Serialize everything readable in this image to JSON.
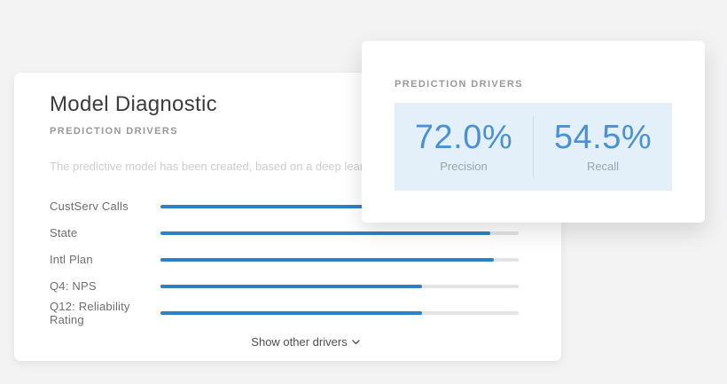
{
  "main_card": {
    "title": "Model Diagnostic",
    "section_label": "PREDICTION DRIVERS",
    "description": "The predictive model has been created, based on a deep learning neural network.",
    "show_more_label": "Show other drivers",
    "drivers": [
      {
        "label": "CustServ Calls",
        "value_pct": 100
      },
      {
        "label": "State",
        "value_pct": 92
      },
      {
        "label": "Intl Plan",
        "value_pct": 93
      },
      {
        "label": "Q4: NPS",
        "value_pct": 73
      },
      {
        "label": "Q12: Reliability Rating",
        "value_pct": 73
      }
    ]
  },
  "overlay_card": {
    "section_label": "PREDICTION DRIVERS",
    "metrics": [
      {
        "value": "72.0%",
        "label": "Precision"
      },
      {
        "value": "54.5%",
        "label": "Recall"
      }
    ]
  },
  "chart_data": {
    "type": "bar",
    "orientation": "horizontal",
    "title": "PREDICTION DRIVERS",
    "categories": [
      "CustServ Calls",
      "State",
      "Intl Plan",
      "Q4: NPS",
      "Q12: Reliability Rating"
    ],
    "values": [
      100,
      92,
      93,
      73,
      73
    ],
    "xlabel": "",
    "ylabel": "",
    "xlim": [
      0,
      100
    ],
    "grid": false,
    "legend": false
  },
  "colors": {
    "bar_blue": "#2f80c3",
    "track_gray": "#e4e4e4",
    "metric_blue": "#4a90d5",
    "metric_box_bg": "#e4f0f9",
    "page_bg": "#f3f3f4"
  }
}
